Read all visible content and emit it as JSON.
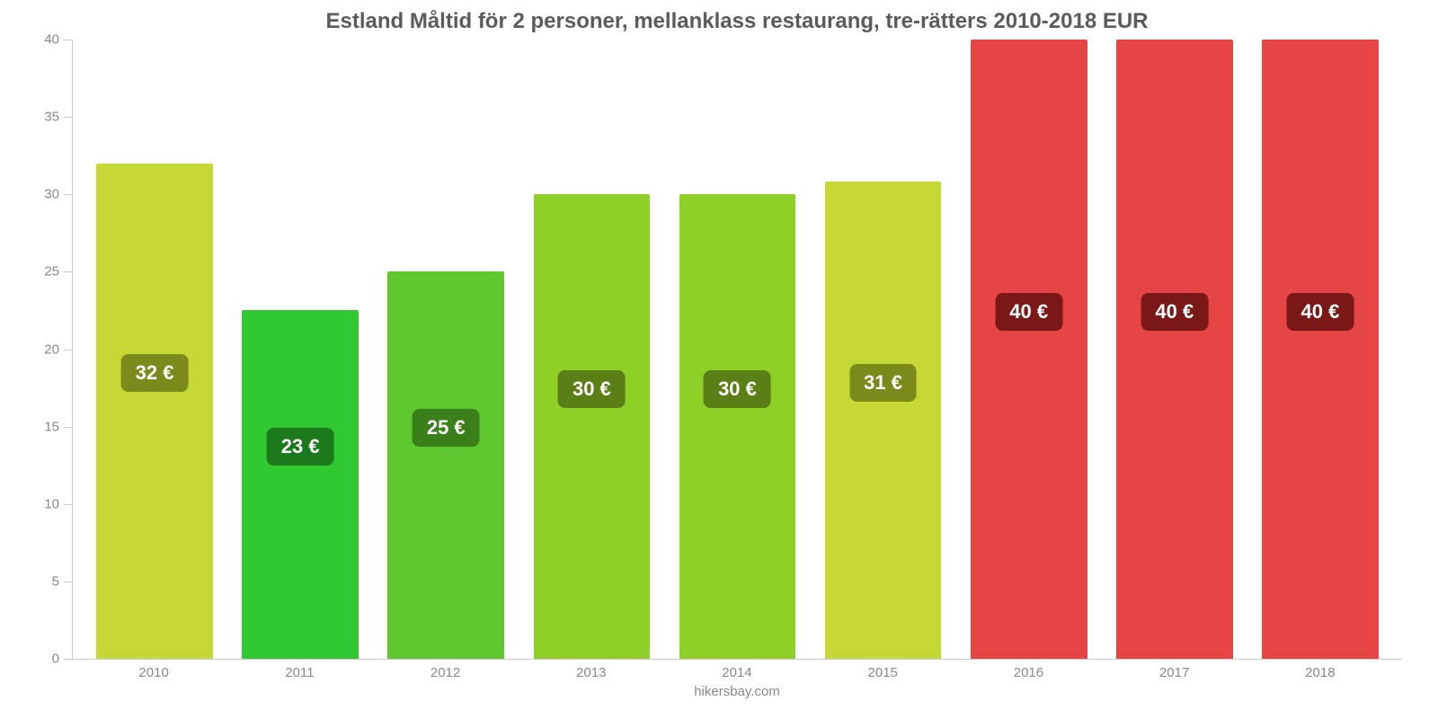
{
  "chart": {
    "type": "bar",
    "title": "Estland Måltid för 2 personer, mellanklass restaurang, tre-rätters 2010-2018 EUR",
    "title_fontsize": 24,
    "title_color": "#5b5b5b",
    "background_color": "#ffffff",
    "axis_color": "#cccccc",
    "tick_label_color": "#888888",
    "tick_label_fontsize": 15,
    "value_label_fontsize": 22,
    "value_label_color": "#ffffff",
    "ylim": [
      0,
      40
    ],
    "ytick_step": 5,
    "yticks": [
      0,
      5,
      10,
      15,
      20,
      25,
      30,
      35,
      40
    ],
    "bar_width_ratio": 0.8,
    "categories": [
      "2010",
      "2011",
      "2012",
      "2013",
      "2014",
      "2015",
      "2016",
      "2017",
      "2018"
    ],
    "values": [
      32,
      22.5,
      25,
      30,
      30,
      30.8,
      40,
      40,
      40
    ],
    "value_labels": [
      "32 €",
      "23 €",
      "25 €",
      "30 €",
      "30 €",
      "31 €",
      "40 €",
      "40 €",
      "40 €"
    ],
    "bar_colors": [
      "#c5d836",
      "#32c832",
      "#5ec82e",
      "#8fd028",
      "#8fd028",
      "#c5d836",
      "#e64545",
      "#e64545",
      "#e64545"
    ],
    "badge_colors": [
      "#7b8a1a",
      "#1c7a1c",
      "#3a7f1a",
      "#5a7f17",
      "#5a7f17",
      "#7b8a1a",
      "#7a1717",
      "#7a1717",
      "#7a1717"
    ],
    "footer": "hikersbay.com"
  }
}
